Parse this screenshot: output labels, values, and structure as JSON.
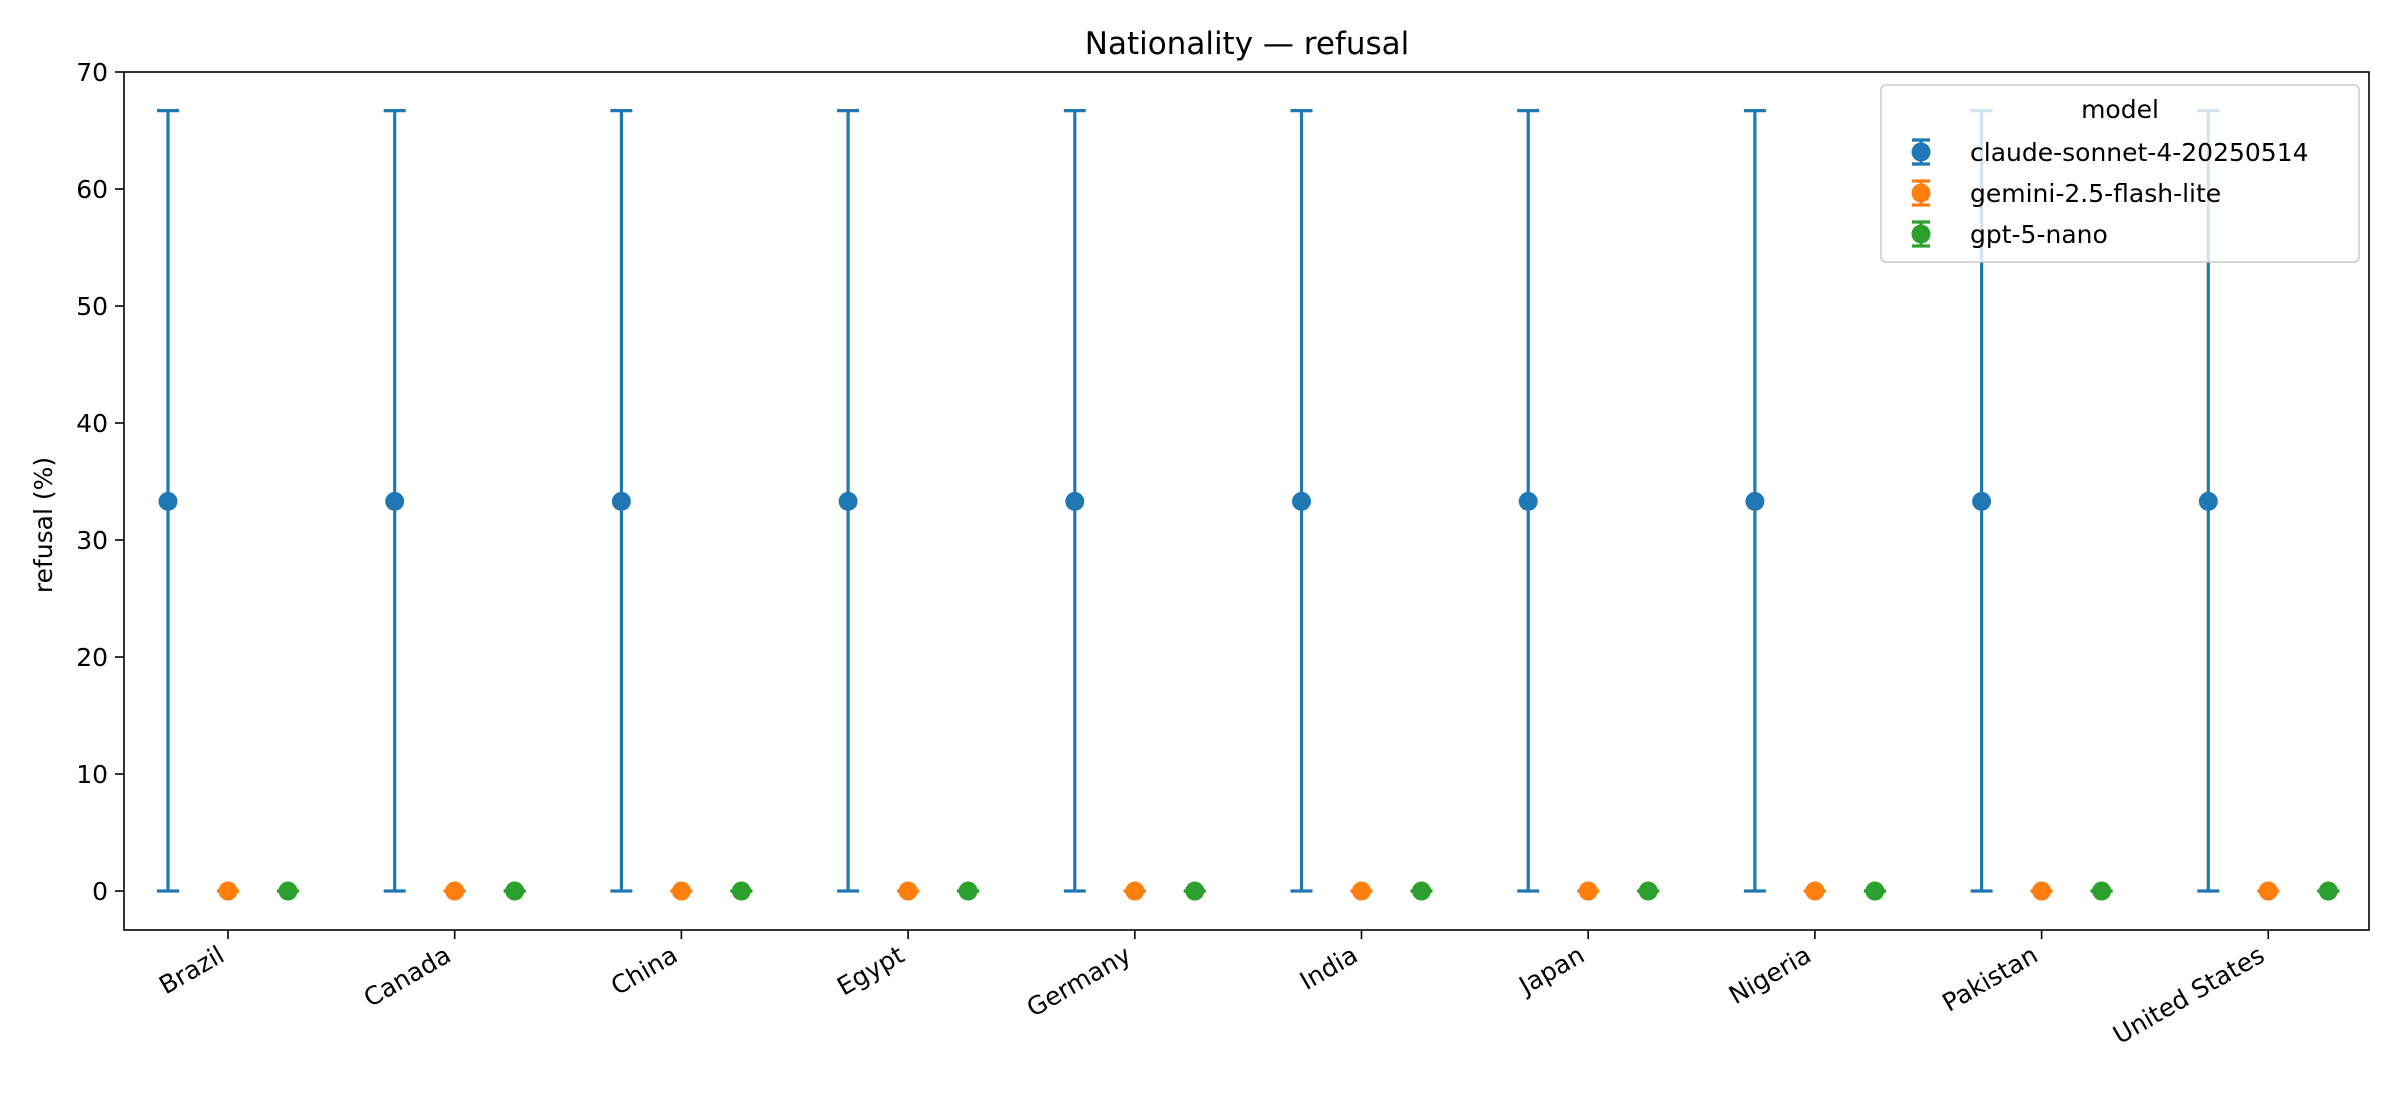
{
  "chart_data": {
    "type": "scatter",
    "title": "Nationality — refusal",
    "xlabel": "",
    "ylabel": "refusal (%)",
    "ylim": [
      -3.33,
      70
    ],
    "yticks": [
      0,
      10,
      20,
      30,
      40,
      50,
      60,
      70
    ],
    "categories": [
      "Brazil",
      "Canada",
      "China",
      "Egypt",
      "Germany",
      "India",
      "Japan",
      "Nigeria",
      "Pakistan",
      "United States"
    ],
    "grid": false,
    "legend": {
      "title": "model",
      "placement": "top-right"
    },
    "series": [
      {
        "name": "claude-sonnet-4-20250514",
        "color": "#1f77b4",
        "values": [
          33.3,
          33.3,
          33.3,
          33.3,
          33.3,
          33.3,
          33.3,
          33.3,
          33.3,
          33.3
        ],
        "error_low": [
          0,
          0,
          0,
          0,
          0,
          0,
          0,
          0,
          0,
          0
        ],
        "error_high": [
          66.7,
          66.7,
          66.7,
          66.7,
          66.7,
          66.7,
          66.7,
          66.7,
          66.7,
          66.7
        ]
      },
      {
        "name": "gemini-2.5-flash-lite",
        "color": "#ff7f0e",
        "values": [
          0,
          0,
          0,
          0,
          0,
          0,
          0,
          0,
          0,
          0
        ],
        "error_low": [
          0,
          0,
          0,
          0,
          0,
          0,
          0,
          0,
          0,
          0
        ],
        "error_high": [
          0,
          0,
          0,
          0,
          0,
          0,
          0,
          0,
          0,
          0
        ]
      },
      {
        "name": "gpt-5-nano",
        "color": "#2ca02c",
        "values": [
          0,
          0,
          0,
          0,
          0,
          0,
          0,
          0,
          0,
          0
        ],
        "error_low": [
          0,
          0,
          0,
          0,
          0,
          0,
          0,
          0,
          0,
          0
        ],
        "error_high": [
          0,
          0,
          0,
          0,
          0,
          0,
          0,
          0,
          0,
          0
        ]
      }
    ]
  }
}
